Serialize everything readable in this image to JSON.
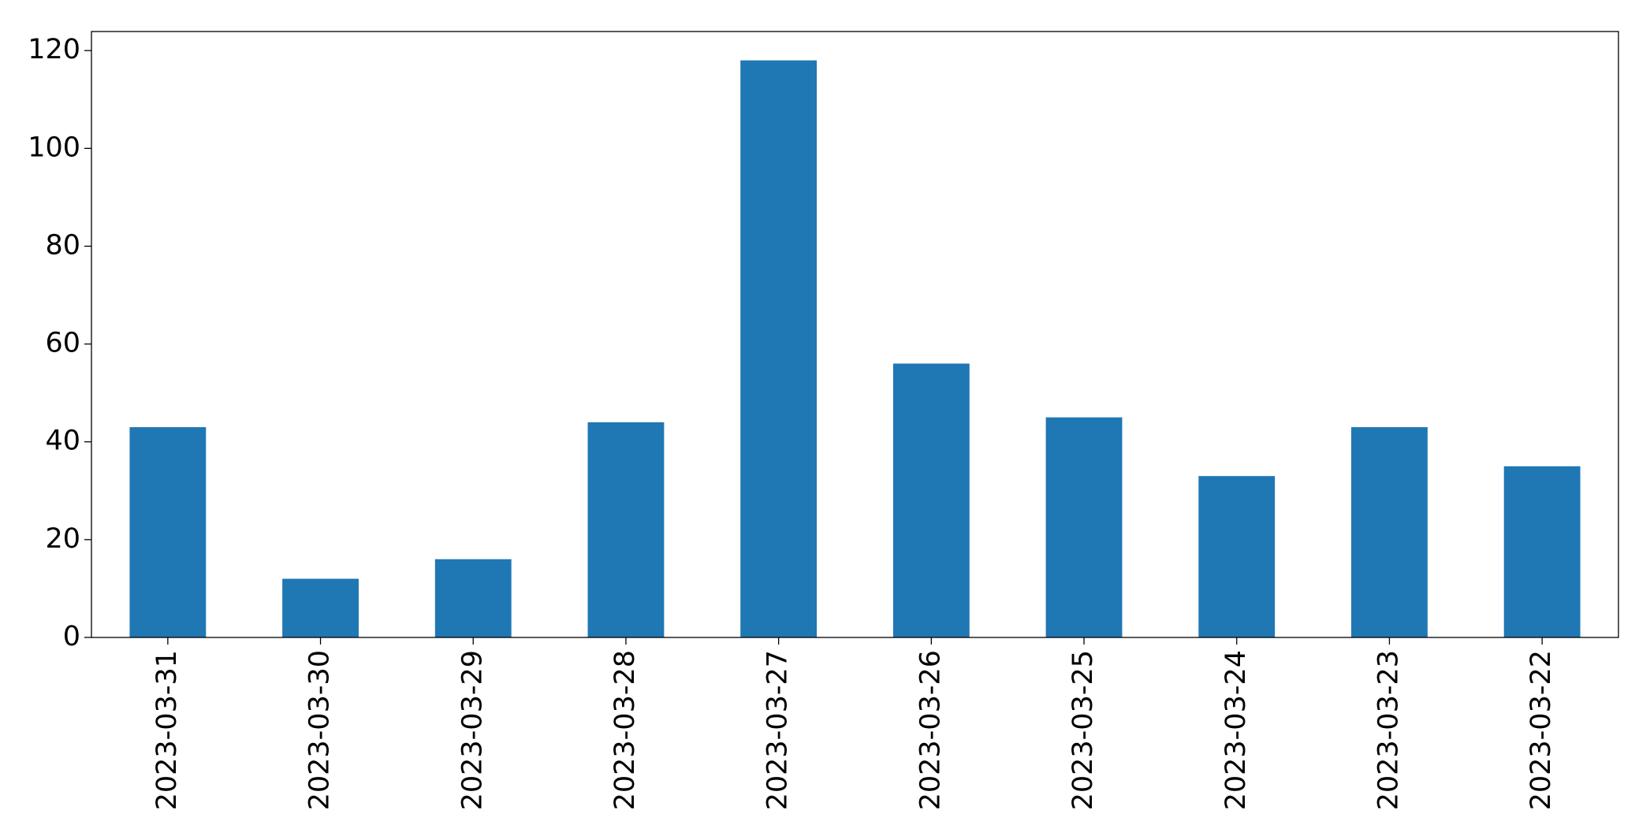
{
  "chart_data": {
    "type": "bar",
    "categories": [
      "2023-03-31",
      "2023-03-30",
      "2023-03-29",
      "2023-03-28",
      "2023-03-27",
      "2023-03-26",
      "2023-03-25",
      "2023-03-24",
      "2023-03-23",
      "2023-03-22"
    ],
    "values": [
      43,
      12,
      16,
      44,
      118,
      56,
      45,
      33,
      43,
      35
    ],
    "color": "#1f77b4",
    "ylim": [
      0,
      123.9
    ],
    "yticks": [
      0,
      20,
      40,
      60,
      80,
      100,
      120
    ],
    "grid": false
  }
}
